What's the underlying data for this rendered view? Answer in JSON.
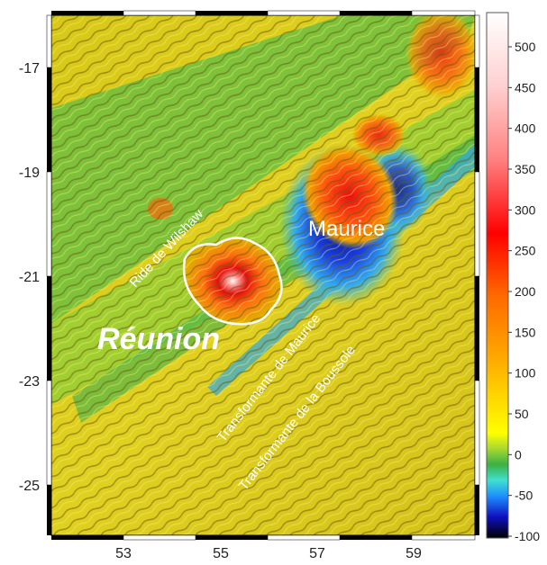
{
  "map": {
    "x_ticks": [
      "53",
      "55",
      "57",
      "59"
    ],
    "y_ticks": [
      "-17",
      "-19",
      "-21",
      "-23",
      "-25"
    ],
    "labels": {
      "maurice": "Maurice",
      "reunion": "Réunion",
      "ride": "Ride de Wilshaw",
      "transformante_maurice": "Transformante de Maurice",
      "transformante_boussole": "Transformante de la Boussole"
    }
  },
  "colorbar": {
    "ticks": [
      "500",
      "450",
      "400",
      "350",
      "300",
      "250",
      "200",
      "150",
      "100",
      "50",
      "0",
      "-50",
      "-100"
    ],
    "colors": [
      "#000000",
      "#1010c0",
      "#1e90ff",
      "#40e0d0",
      "#3cb043",
      "#a8d830",
      "#ffff00",
      "#ffb000",
      "#ff6a00",
      "#ff0000",
      "#ff8080",
      "#ffd0d0",
      "#ffffff"
    ]
  }
}
